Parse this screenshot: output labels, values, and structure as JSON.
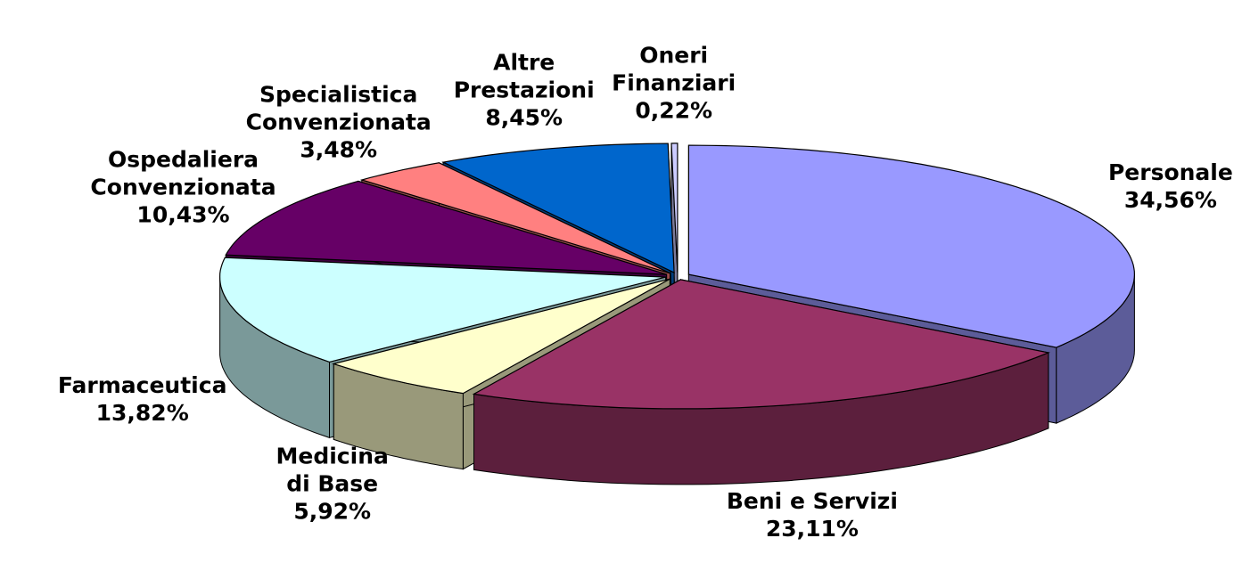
{
  "chart_data": {
    "type": "pie3d",
    "categories": [
      "Personale",
      "Beni e Servizi",
      "Medicina\ndi Base",
      "Farmaceutica",
      "Ospedaliera\nConvenzionata",
      "Specialistica\nConvenzionata",
      "Altre\nPrestazioni",
      "Oneri\nFinanziari"
    ],
    "values": [
      34.56,
      23.11,
      5.92,
      13.82,
      10.43,
      3.48,
      8.45,
      0.22
    ],
    "value_labels": [
      "34,56%",
      "23,11%",
      "5,92%",
      "13,82%",
      "10,43%",
      "3,48%",
      "8,45%",
      "0,22%"
    ],
    "colors": [
      "#9999ff",
      "#993366",
      "#ffffcc",
      "#ccffff",
      "#660066",
      "#ff8080",
      "#0066cc",
      "#ccccff"
    ]
  }
}
